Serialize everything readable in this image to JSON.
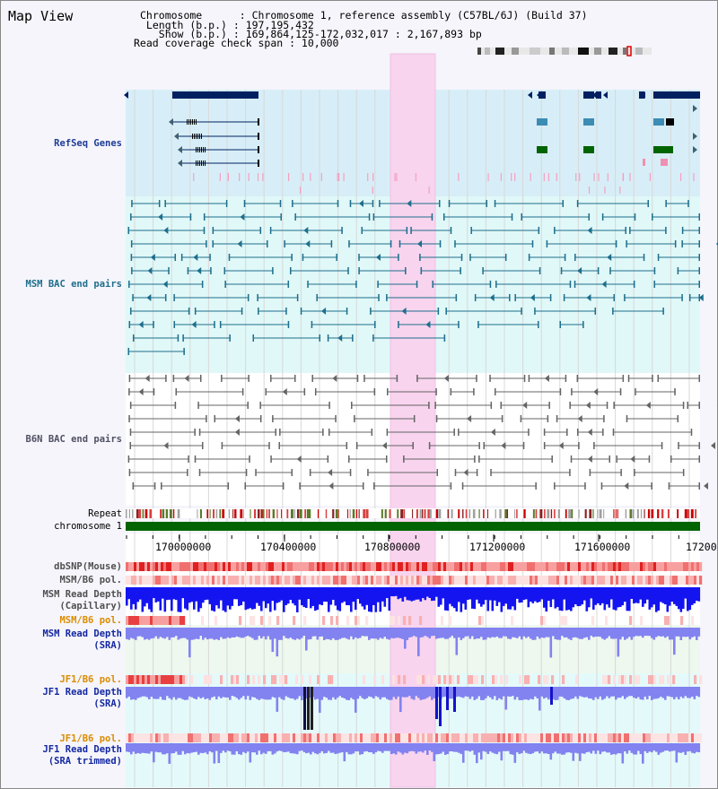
{
  "title": "Map View",
  "info": {
    "chromosome": "Chromosome      : Chromosome 1, reference assembly (C57BL/6J) (Build 37)",
    "length": " Length (b.p.) : 197,195,432",
    "show": "   Show (b.p.) : 169,864,125-172,032,017 : 2,167,893 bp",
    "span": "Read coverage check span : 10,000"
  },
  "tracks": [
    {
      "key": "refseq",
      "label": "RefSeq Genes",
      "color": "#1e3c96"
    },
    {
      "key": "msm_bac",
      "label": "MSM BAC end pairs",
      "color": "#1e6e8c"
    },
    {
      "key": "b6n_bac",
      "label": "B6N BAC end pairs",
      "color": "#505064"
    },
    {
      "key": "repeat",
      "label": "Repeat",
      "color": "#000000"
    },
    {
      "key": "chrom",
      "label": "chromosome 1",
      "color": "#000000"
    },
    {
      "key": "dbsnp",
      "label": "dbSNP(Mouse)",
      "color": "#505050"
    },
    {
      "key": "msm_b6_pol",
      "label": "MSM/B6 pol.",
      "color": "#505050"
    },
    {
      "key": "msm_depth_cap",
      "label": "MSM Read Depth\n(Capillary)",
      "color": "#505050"
    },
    {
      "key": "msm_b6_pol2",
      "label": "MSM/B6 pol.",
      "color": "#dc8c00"
    },
    {
      "key": "msm_depth_sra",
      "label": "MSM Read Depth\n(SRA)",
      "color": "#1428a0"
    },
    {
      "key": "jf1_b6_pol",
      "label": "JF1/B6 pol.",
      "color": "#dc8c00"
    },
    {
      "key": "jf1_depth_sra",
      "label": "JF1 Read Depth\n(SRA)",
      "color": "#1428a0"
    },
    {
      "key": "jf1_b6_pol2",
      "label": "JF1/B6 pol.",
      "color": "#dc8c00"
    },
    {
      "key": "jf1_depth_trim",
      "label": "JF1 Read Depth\n(SRA trimmed)",
      "color": "#1428a0"
    }
  ],
  "axis_ticks": [
    "170000000",
    "170400000",
    "170800000",
    "171200000",
    "171600000",
    "17200"
  ],
  "colors": {
    "refseq_bg": "#d7eef8",
    "bac_bg": "#e0f8f8",
    "highlight": "#f8d4ee",
    "gene_dark": "#002060",
    "gene_teal": "#3c8cb4",
    "gene_green": "#006400",
    "msm_pair": "#1e6e8c",
    "b6n_pair": "#646464",
    "chromosome_bar": "#006400",
    "snp_red": "#f07070",
    "depth_blue": "#1414f0",
    "depth_light": "#8282f0"
  }
}
